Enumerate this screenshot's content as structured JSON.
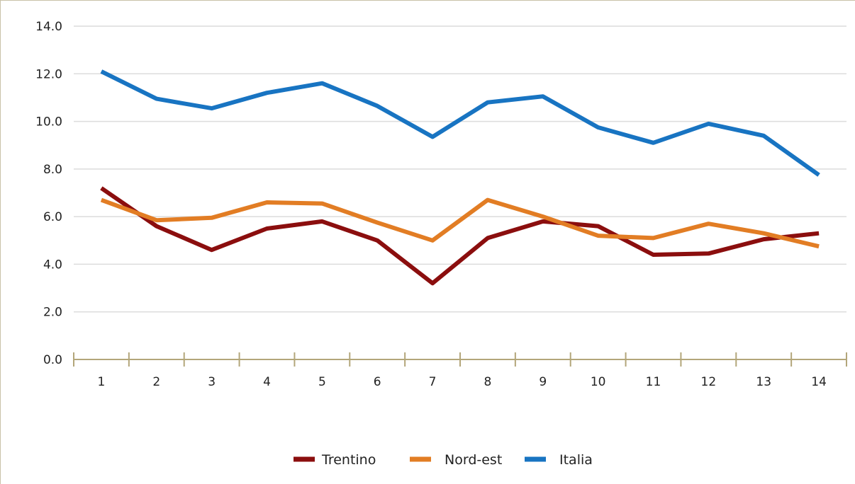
{
  "chart_data": {
    "type": "line",
    "title": "",
    "xlabel": "",
    "ylabel": "",
    "x": [
      1,
      2,
      3,
      4,
      5,
      6,
      7,
      8,
      9,
      10,
      11,
      12,
      13,
      14
    ],
    "x_tick_labels": [
      "1",
      "2",
      "3",
      "4",
      "5",
      "6",
      "7",
      "8",
      "9",
      "10",
      "11",
      "12",
      "13",
      "14"
    ],
    "ylim": [
      0,
      14
    ],
    "y_ticks": [
      0,
      2,
      4,
      6,
      8,
      10,
      12,
      14
    ],
    "y_tick_labels": [
      "0.0",
      "2.0",
      "4.0",
      "6.0",
      "8.0",
      "10.0",
      "12.0",
      "14.0"
    ],
    "grid": true,
    "legend_position": "bottom-center",
    "series": [
      {
        "name": "Trentino",
        "color": "#8b0e0e",
        "values": [
          7.2,
          5.6,
          4.6,
          5.5,
          5.8,
          5.0,
          3.2,
          5.1,
          5.8,
          5.6,
          4.4,
          4.45,
          5.05,
          5.3
        ]
      },
      {
        "name": "Nord-est",
        "color": "#e27d24",
        "values": [
          6.7,
          5.85,
          5.95,
          6.6,
          6.55,
          5.75,
          5.0,
          6.7,
          6.0,
          5.2,
          5.1,
          5.7,
          5.3,
          4.75
        ]
      },
      {
        "name": "Italia",
        "color": "#1874c2",
        "values": [
          12.1,
          10.95,
          10.55,
          11.2,
          11.6,
          10.65,
          9.35,
          10.8,
          11.05,
          9.75,
          9.1,
          9.9,
          9.4,
          7.75
        ]
      }
    ]
  }
}
